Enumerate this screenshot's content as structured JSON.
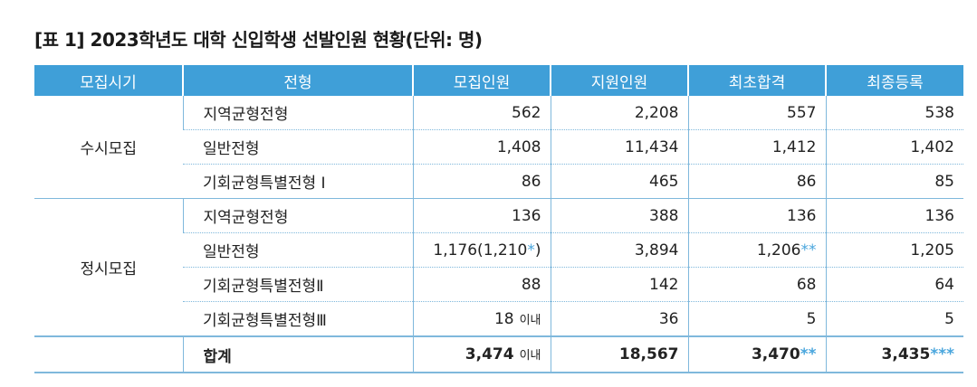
{
  "title": "[표 1] 2023학년도 대학 신입학생 선발인원 현황(단위: 명)",
  "headers": [
    "모집시기",
    "전형",
    "모집인원",
    "지원인원",
    "최초합격",
    "최종등록"
  ],
  "groups": [
    {
      "period": "수시모집",
      "rows": [
        {
          "type": "지역균형전형",
          "quota": "562",
          "applicants": "2,208",
          "initial": "557",
          "final": "538"
        },
        {
          "type": "일반전형",
          "quota": "1,408",
          "applicants": "11,434",
          "initial": "1,412",
          "final": "1,402"
        },
        {
          "type": "기회균형특별전형 Ⅰ",
          "quota": "86",
          "applicants": "465",
          "initial": "86",
          "final": "85"
        }
      ]
    },
    {
      "period": "정시모집",
      "rows": [
        {
          "type": "지역균형전형",
          "quota": "136",
          "applicants": "388",
          "initial": "136",
          "final": "136"
        },
        {
          "type": "일반전형",
          "quota": "1,176(1,210",
          "quota_mark": "*",
          "quota_suffix": ")",
          "applicants": "3,894",
          "initial": "1,206",
          "initial_mark": "**",
          "final": "1,205"
        },
        {
          "type": "기회균형특별전형Ⅱ",
          "quota": "88",
          "applicants": "142",
          "initial": "68",
          "final": "64"
        },
        {
          "type": "기회균형특별전형Ⅲ",
          "quota": "18",
          "quota_note": "이내",
          "applicants": "36",
          "initial": "5",
          "final": "5"
        }
      ]
    }
  ],
  "total": {
    "label": "합계",
    "quota": "3,474",
    "quota_note": "이내",
    "applicants": "18,567",
    "initial": "3,470",
    "initial_mark": "**",
    "final": "3,435",
    "final_mark": "***"
  },
  "colors": {
    "header_bg": "#3f9fd8",
    "accent": "#4aa6dd",
    "rule": "#7fb8dc"
  }
}
